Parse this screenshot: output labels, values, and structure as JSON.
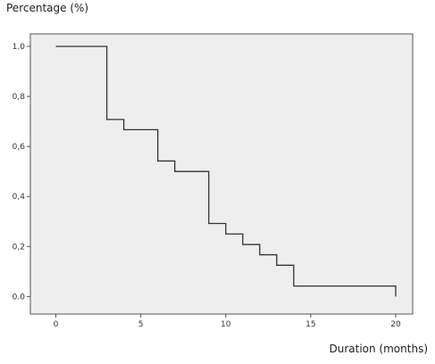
{
  "chart_data": {
    "type": "line",
    "style": "step",
    "xlabel": "Duration (months)",
    "ylabel": "Percentage (%)",
    "xlim": [
      -1.5,
      21
    ],
    "ylim": [
      -0.07,
      1.05
    ],
    "xticks": [
      0,
      5,
      10,
      15,
      20
    ],
    "xtick_labels": [
      "0",
      "5",
      "10",
      "15",
      "20"
    ],
    "yticks": [
      0.0,
      0.2,
      0.4,
      0.6,
      0.8,
      1.0
    ],
    "ytick_labels": [
      "0.0",
      "0,2",
      "0,4",
      "0,6",
      "0,8",
      "1.0"
    ],
    "grid": false,
    "colors": {
      "plot_background": "#eeeeee",
      "line": "#333333",
      "frame": "#555555"
    },
    "series": [
      {
        "x": [
          0,
          3,
          4,
          6,
          7,
          9,
          10,
          11,
          12,
          13,
          14,
          20,
          20
        ],
        "y": [
          1.0,
          0.708,
          0.667,
          0.542,
          0.5,
          0.292,
          0.25,
          0.208,
          0.167,
          0.125,
          0.042,
          0.042,
          0.0
        ]
      }
    ]
  }
}
